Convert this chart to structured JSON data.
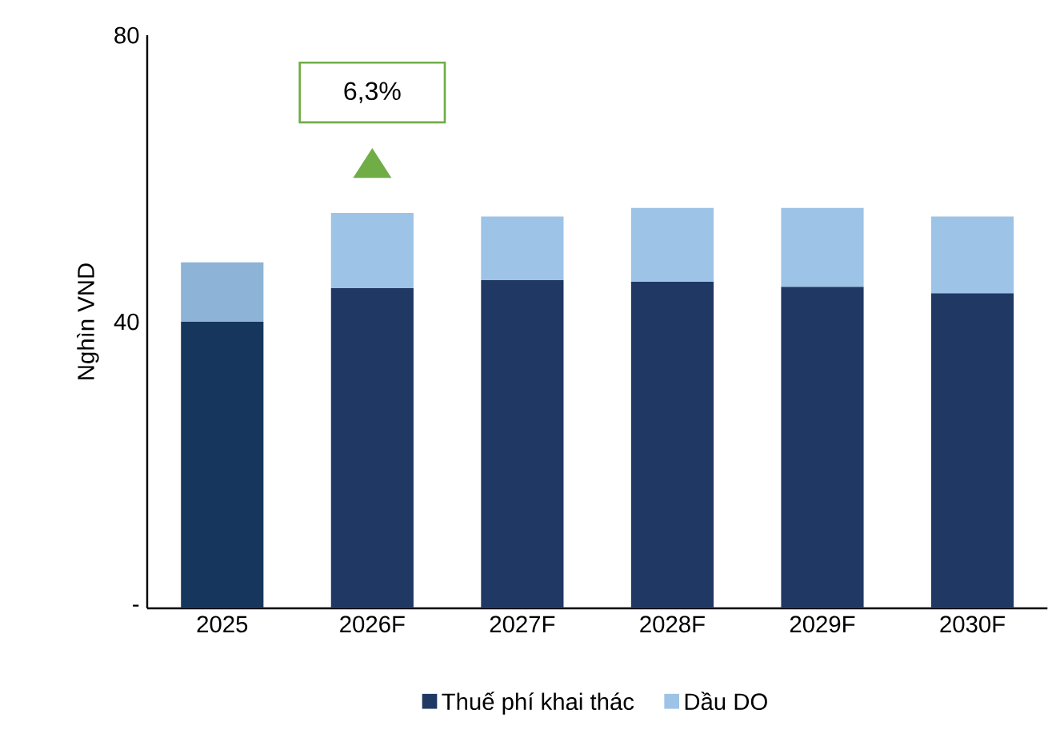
{
  "chart_data": {
    "type": "bar",
    "stacked": true,
    "ylabel": "Nghìn VND",
    "categories": [
      "2025",
      "2026F",
      "2027F",
      "2028F",
      "2029F",
      "2030F"
    ],
    "series": [
      {
        "name": "Thuế phí khai thác",
        "color": "#1f3864",
        "colors": [
          "#17365d",
          "#1f3864",
          "#1f3864",
          "#1f3864",
          "#1f3864",
          "#1f3864"
        ],
        "values": [
          40,
          44.7,
          45.8,
          45.6,
          44.9,
          44.0
        ]
      },
      {
        "name": "Dầu DO",
        "color": "#9dc3e6",
        "colors": [
          "#8db3d6",
          "#9dc3e6",
          "#9dc3e6",
          "#9dc3e6",
          "#9dc3e6",
          "#9dc3e6"
        ],
        "values": [
          8.3,
          10.5,
          8.9,
          10.3,
          11.0,
          10.7
        ]
      }
    ],
    "ylim": [
      0,
      80
    ],
    "yticks": [
      {
        "value": 0,
        "label": "-"
      },
      40,
      80
    ],
    "annotations": [
      "6,3%"
    ],
    "legend": "bottom"
  }
}
